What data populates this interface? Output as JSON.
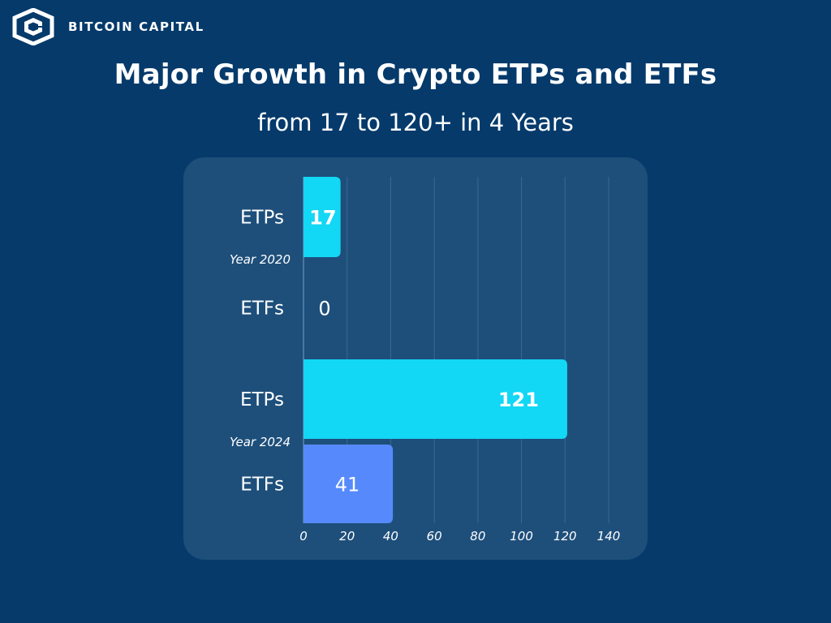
{
  "brand": {
    "name": "BITCOIN CAPITAL",
    "logo_icon": "hexagon-c-logo-icon"
  },
  "header": {
    "title": "Major Growth in Crypto ETPs and ETFs",
    "subtitle": "from 17 to 120+ in 4 Years"
  },
  "colors": {
    "background": "#053a6b",
    "panel": "#1e4f7b",
    "etp_bar": "#12d7f5",
    "etf_bar": "#568afc",
    "grid": "#4a7aa3",
    "text": "#ffffff"
  },
  "chart_data": {
    "type": "bar",
    "orientation": "horizontal",
    "title": "Major Growth in Crypto ETPs and ETFs",
    "subtitle": "from 17 to 120+ in 4 Years",
    "xlabel": "",
    "ylabel": "",
    "xlim": [
      0,
      140
    ],
    "xticks": [
      0,
      20,
      40,
      60,
      80,
      100,
      120,
      140
    ],
    "grid": "vertical",
    "legend": "none",
    "groups": [
      {
        "year_label": "Year 2020",
        "bars": [
          {
            "category": "ETPs",
            "value": 17,
            "label": "17",
            "color_key": "etp_bar",
            "label_bold": true
          },
          {
            "category": "ETFs",
            "value": 0,
            "label": "0",
            "color_key": "etf_bar",
            "label_bold": false
          }
        ]
      },
      {
        "year_label": "Year 2024",
        "bars": [
          {
            "category": "ETPs",
            "value": 121,
            "label": "121",
            "color_key": "etp_bar",
            "label_bold": true
          },
          {
            "category": "ETFs",
            "value": 41,
            "label": "41",
            "color_key": "etf_bar",
            "label_bold": false
          }
        ]
      }
    ]
  }
}
